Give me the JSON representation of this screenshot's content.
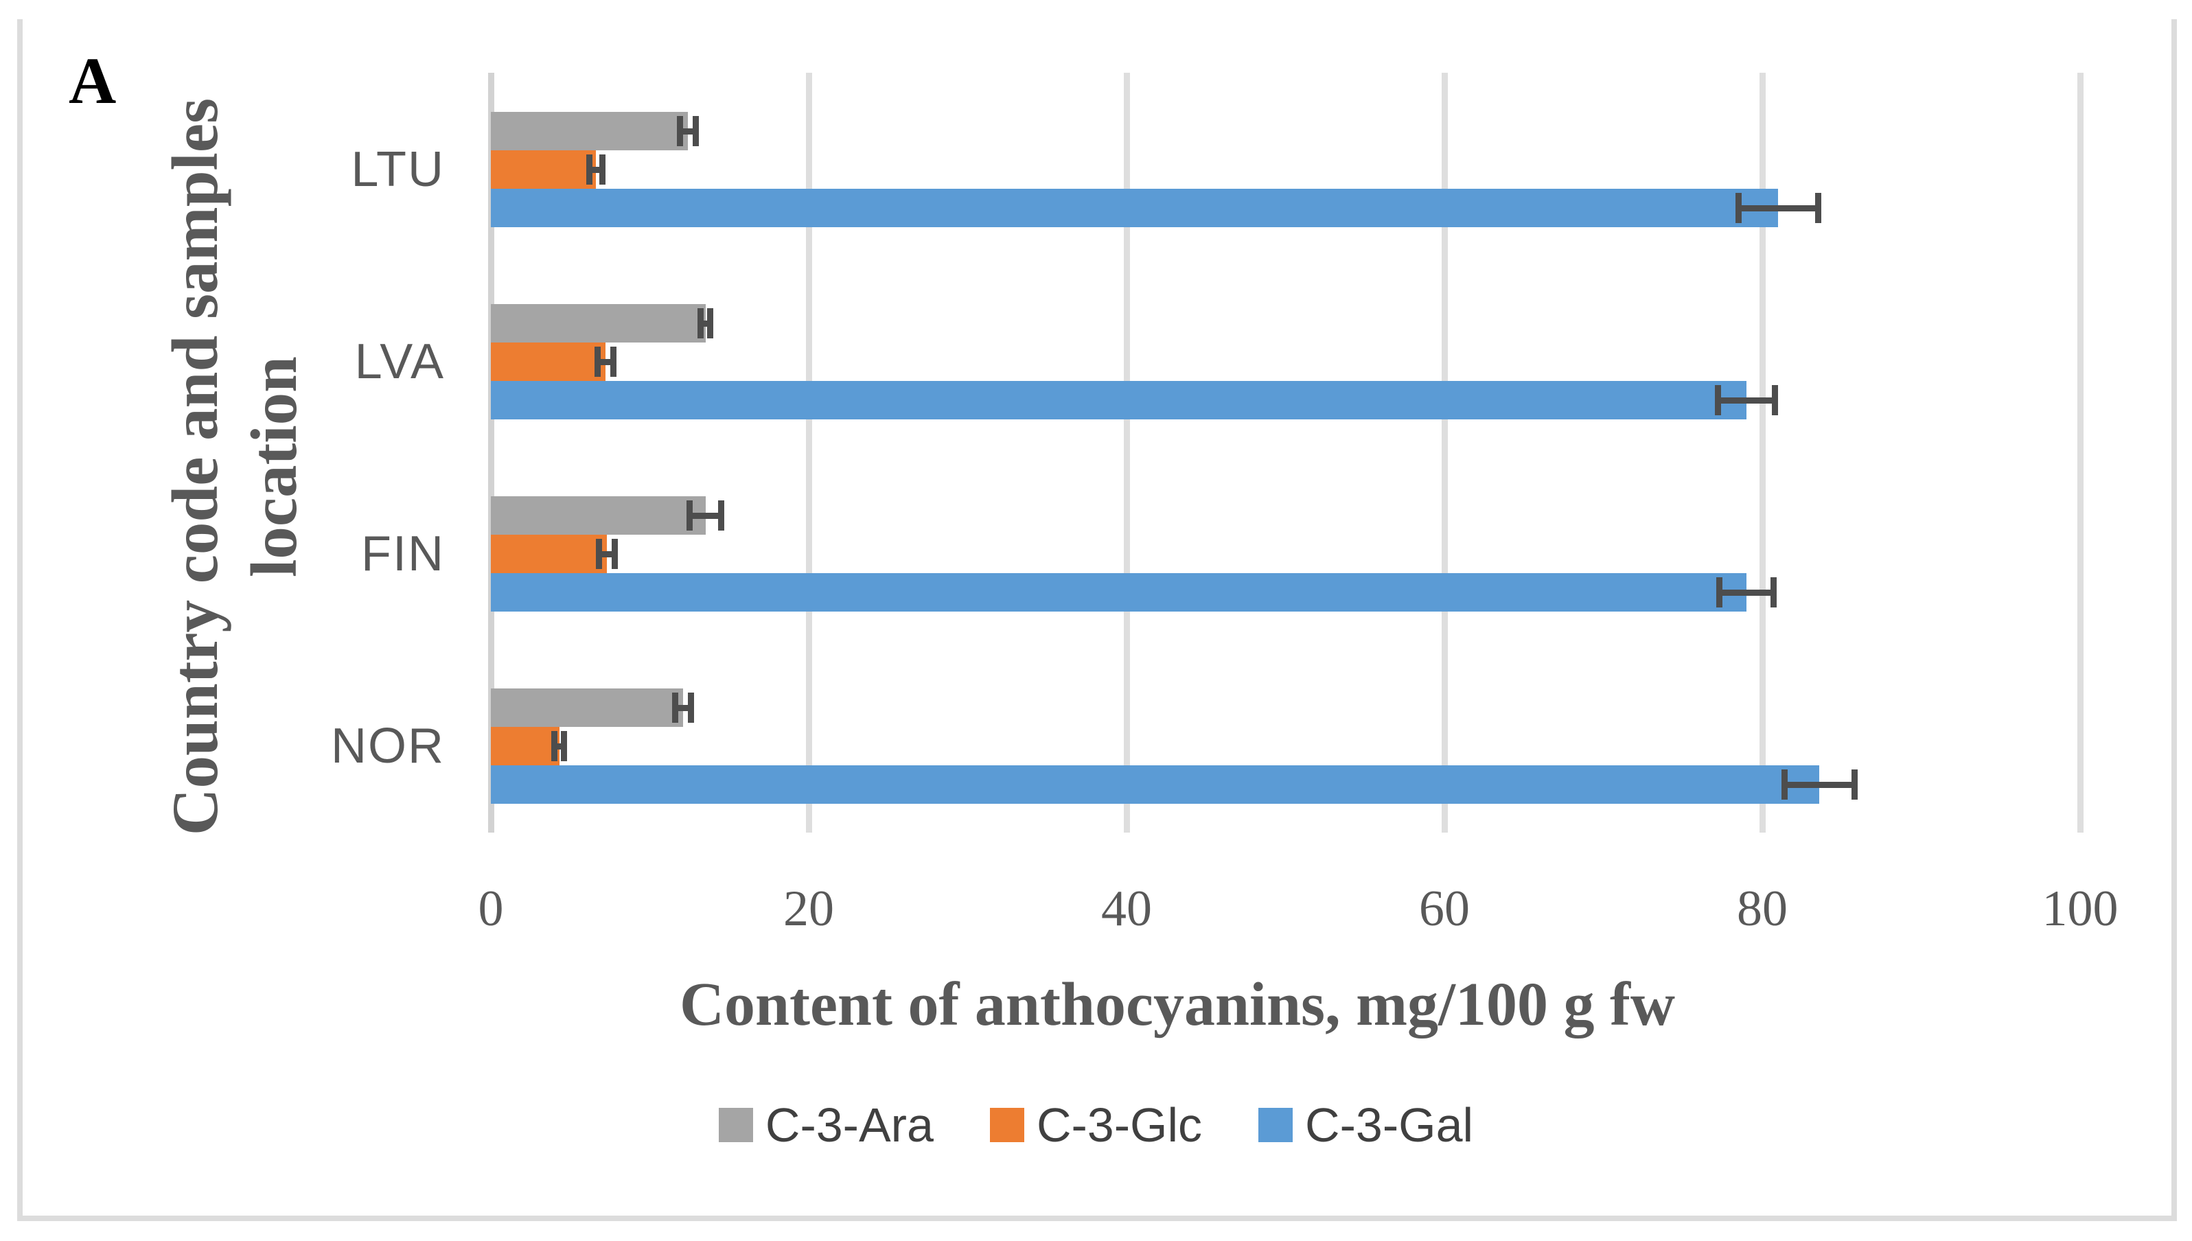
{
  "panel_label": "A",
  "colors": {
    "series_gray": "#A5A5A5",
    "series_orange": "#ED7D31",
    "series_blue": "#5B9BD5",
    "error_bar": "#4D4D4D",
    "gridline": "#DEDEDE",
    "axis_line": "#D2D2D2",
    "frame": "#DCDCDC",
    "label_text": "#595959",
    "legend_text": "#404040"
  },
  "chart_data": {
    "type": "bar",
    "orientation": "horizontal",
    "title": "",
    "xlabel": "Content of anthocyanins, mg/100 g fw",
    "ylabel": "Country code and samples location",
    "ylabel_lines": [
      "Country code and samples",
      "location"
    ],
    "categories": [
      "LTU",
      "LVA",
      "FIN",
      "NOR"
    ],
    "xlim": [
      0,
      100
    ],
    "xticks": [
      0,
      20,
      40,
      60,
      80,
      100
    ],
    "grid": true,
    "legend_position": "bottom-center",
    "error_bars": true,
    "series": [
      {
        "name": "C-3-Ara",
        "color": "#A5A5A5",
        "values": [
          12.4,
          13.5,
          13.5,
          12.1
        ],
        "errors": [
          0.5,
          0.3,
          1.0,
          0.5
        ]
      },
      {
        "name": "C-3-Glc",
        "color": "#ED7D31",
        "values": [
          6.6,
          7.2,
          7.3,
          4.3
        ],
        "errors": [
          0.4,
          0.5,
          0.5,
          0.3
        ]
      },
      {
        "name": "C-3-Gal",
        "color": "#5B9BD5",
        "values": [
          81.0,
          79.0,
          79.0,
          83.6
        ],
        "errors": [
          2.5,
          1.8,
          1.7,
          2.2
        ]
      }
    ]
  }
}
